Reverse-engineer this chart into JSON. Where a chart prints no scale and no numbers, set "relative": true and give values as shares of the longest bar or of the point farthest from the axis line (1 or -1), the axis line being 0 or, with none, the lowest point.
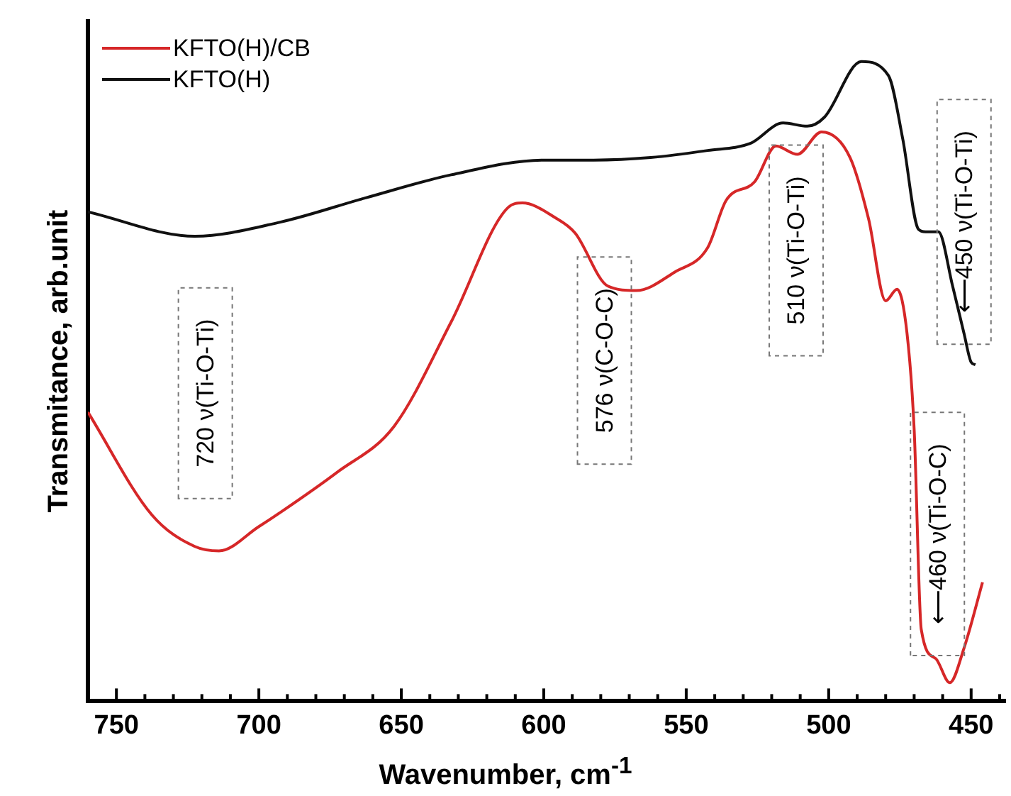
{
  "chart_data": {
    "type": "line",
    "relative": true,
    "xlabel": "Wavenumber, cm$^{-1}$",
    "ylabel": "Transmitance, arb.unit",
    "xlim": [
      760,
      438
    ],
    "xticks": [
      {
        "value": 760,
        "label": null
      },
      750,
      {
        "value": 740,
        "label": null
      },
      {
        "value": 730,
        "label": null
      },
      {
        "value": 720,
        "label": null
      },
      {
        "value": 710,
        "label": null
      },
      700,
      {
        "value": 690,
        "label": null
      },
      {
        "value": 680,
        "label": null
      },
      {
        "value": 670,
        "label": null
      },
      {
        "value": 660,
        "label": null
      },
      650,
      {
        "value": 640,
        "label": null
      },
      {
        "value": 630,
        "label": null
      },
      {
        "value": 620,
        "label": null
      },
      {
        "value": 610,
        "label": null
      },
      600,
      {
        "value": 590,
        "label": null
      },
      {
        "value": 580,
        "label": null
      },
      {
        "value": 570,
        "label": null
      },
      {
        "value": 560,
        "label": null
      },
      550,
      {
        "value": 540,
        "label": null
      },
      {
        "value": 530,
        "label": null
      },
      {
        "value": 520,
        "label": null
      },
      {
        "value": 510,
        "label": null
      },
      500,
      {
        "value": 490,
        "label": null
      },
      {
        "value": 480,
        "label": null
      },
      {
        "value": 470,
        "label": null
      },
      {
        "value": 460,
        "label": null
      },
      450,
      {
        "value": 440,
        "label": null
      }
    ],
    "legend": "top left",
    "grid": false,
    "marker": "none",
    "line_style": "solid",
    "series": [
      {
        "name": "KFTO(H)/CB",
        "color": "#d62728",
        "x": [
          760,
          737.5,
          722.5,
          714,
          700,
          692.5,
          672.5,
          652.5,
          632.5,
          612.5,
          607.5,
          596,
          589,
          577.5,
          567.5,
          554,
          542.5,
          536,
          526,
          518.5,
          511,
          502.5,
          492.5,
          486,
          480,
          476,
          472.5,
          470,
          467.5,
          462.5,
          457.5,
          452.5,
          446
        ],
        "values": [
          0.452,
          0.291,
          0.242,
          0.235,
          0.273,
          0.295,
          0.358,
          0.43,
          0.593,
          0.772,
          0.779,
          0.756,
          0.732,
          0.649,
          0.642,
          0.671,
          0.709,
          0.783,
          0.812,
          0.868,
          0.855,
          0.89,
          0.85,
          0.754,
          0.626,
          0.644,
          0.575,
          0.425,
          0.112,
          0.067,
          0.029,
          0.083,
          0.186
        ]
      },
      {
        "name": "KFTO(H)",
        "color": "#111111",
        "x": [
          760,
          722.5,
          692.5,
          662.5,
          632.5,
          600,
          582.5,
          562.5,
          542.5,
          527.5,
          516,
          507.5,
          501.5,
          488.5,
          479,
          474,
          468.5,
          466,
          461.5,
          456.5,
          452.5,
          450,
          448.5
        ],
        "values": [
          0.765,
          0.727,
          0.749,
          0.787,
          0.823,
          0.846,
          0.846,
          0.85,
          0.861,
          0.872,
          0.904,
          0.899,
          0.913,
          1.0,
          0.978,
          0.879,
          0.738,
          0.734,
          0.734,
          0.649,
          0.575,
          0.53,
          0.526
        ]
      }
    ],
    "annotations": [
      "720 ν(Ti-O-Ti)",
      "576 ν(C-O-C)",
      "510 ν(Ti-O-Ti)",
      "⟵460 ν(Ti-O-C)",
      "⟵450 ν(Ti-O-Ti)"
    ]
  }
}
